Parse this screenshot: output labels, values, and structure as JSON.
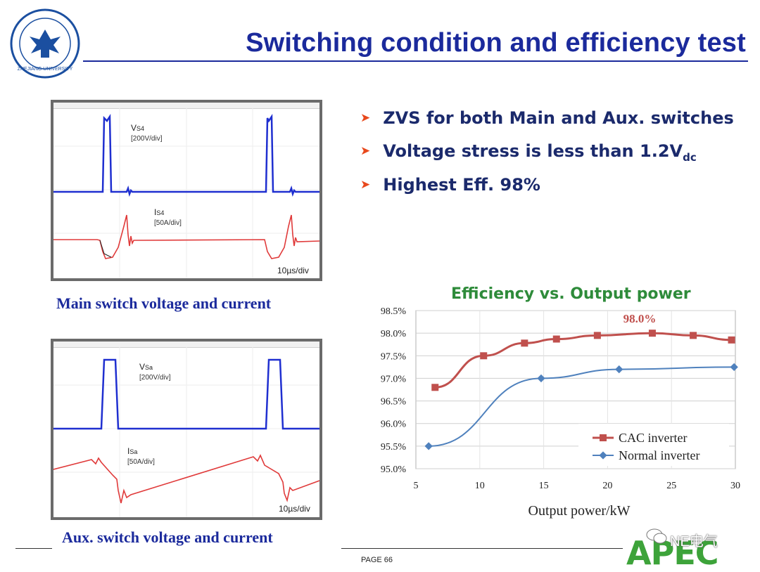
{
  "slide": {
    "title": "Switching condition and efficiency test",
    "page": "PAGE 66",
    "footer_logo": "APEC",
    "watermark": "NE电气",
    "university_logo_text": "ZHEJIANG UNIVERSITY"
  },
  "scope_main": {
    "v_label": "V",
    "v_sub": "S4",
    "v_unit": "[200V/div]",
    "i_label": "I",
    "i_sub": "S4",
    "i_unit": "[50A/div]",
    "timebase": "10µs/div",
    "caption": "Main switch voltage and current"
  },
  "scope_aux": {
    "v_label": "V",
    "v_sub": "Sa",
    "v_unit": "[200V/div]",
    "i_label": "I",
    "i_sub": "Sa",
    "i_unit": "[50A/div]",
    "timebase": "10µs/div",
    "caption": "Aux. switch voltage and current"
  },
  "bullets": [
    {
      "text": "ZVS for both Main and Aux. switches"
    },
    {
      "text": "Voltage stress is less than 1.2V",
      "sub": "dc"
    },
    {
      "text": "Highest Eff. 98%"
    }
  ],
  "colors": {
    "title": "#1b2a9c",
    "bullet_arrow": "#e8481c",
    "cac": "#c0504d",
    "normal": "#4f81bd",
    "chart_title": "#2e8b3a"
  },
  "chart_data": {
    "type": "line",
    "title": "Efficiency vs. Output power",
    "xlabel": "Output power/kW",
    "ylabel": "",
    "xlim": [
      5,
      30
    ],
    "ylim": [
      95.0,
      98.5
    ],
    "xticks": [
      "5",
      "10",
      "15",
      "20",
      "25",
      "30"
    ],
    "yticks": [
      "95.0%",
      "95.5%",
      "96.0%",
      "96.5%",
      "97.0%",
      "97.5%",
      "98.0%",
      "98.5%"
    ],
    "grid": true,
    "legend": "bottom-right",
    "annotation": "98.0%",
    "series": [
      {
        "name": "CAC inverter",
        "x": [
          6.5,
          10.3,
          13.5,
          16,
          19.2,
          23.5,
          26.7,
          29.7
        ],
        "y": [
          96.8,
          97.5,
          97.78,
          97.87,
          97.95,
          98.0,
          97.95,
          97.85
        ]
      },
      {
        "name": "Normal inverter",
        "x": [
          6.0,
          14.8,
          20.9,
          29.9
        ],
        "y": [
          95.5,
          97.0,
          97.2,
          97.25
        ]
      }
    ]
  }
}
